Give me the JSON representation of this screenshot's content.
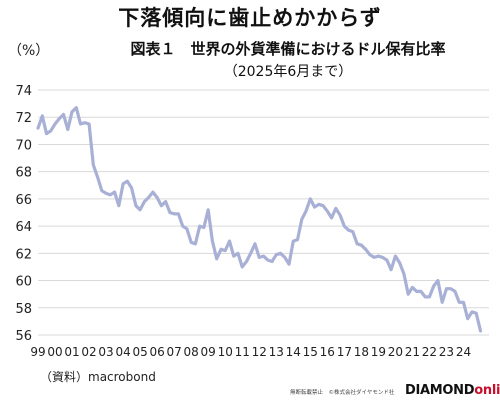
{
  "headline": "下落傾向に歯止めかからず",
  "chart_data": {
    "type": "line",
    "title": "図表１　世界の外貨準備におけるドル保有比率",
    "subtitle": "（2025年6月まで）",
    "ylabel": "（%）",
    "xlabel": "",
    "ylim": [
      56,
      74
    ],
    "yticks": [
      56,
      58,
      60,
      62,
      64,
      66,
      68,
      70,
      72,
      74
    ],
    "xlim": [
      1999.0,
      2025.5
    ],
    "xtick_values": [
      1999,
      2000,
      2001,
      2002,
      2003,
      2004,
      2005,
      2006,
      2007,
      2008,
      2009,
      2010,
      2011,
      2012,
      2013,
      2014,
      2015,
      2016,
      2017,
      2018,
      2019,
      2020,
      2021,
      2022,
      2023,
      2024
    ],
    "xtick_labels": [
      "99",
      "00",
      "01",
      "02",
      "03",
      "04",
      "05",
      "06",
      "07",
      "08",
      "09",
      "10",
      "11",
      "12",
      "13",
      "14",
      "15",
      "16",
      "17",
      "18",
      "19",
      "20",
      "21",
      "22",
      "23",
      "24"
    ],
    "grid": "horizontal",
    "line_color": "#a9b0d6",
    "series": [
      {
        "name": "",
        "points": [
          [
            1999.0,
            71.2
          ],
          [
            1999.25,
            72.1
          ],
          [
            1999.5,
            70.8
          ],
          [
            1999.75,
            71.0
          ],
          [
            2000.0,
            71.5
          ],
          [
            2000.25,
            71.9
          ],
          [
            2000.5,
            72.2
          ],
          [
            2000.75,
            71.1
          ],
          [
            2001.0,
            72.4
          ],
          [
            2001.25,
            72.7
          ],
          [
            2001.5,
            71.5
          ],
          [
            2001.75,
            71.6
          ],
          [
            2002.0,
            71.5
          ],
          [
            2002.25,
            68.5
          ],
          [
            2002.5,
            67.6
          ],
          [
            2002.75,
            66.6
          ],
          [
            2003.0,
            66.4
          ],
          [
            2003.25,
            66.3
          ],
          [
            2003.5,
            66.5
          ],
          [
            2003.75,
            65.5
          ],
          [
            2004.0,
            67.1
          ],
          [
            2004.25,
            67.3
          ],
          [
            2004.5,
            66.8
          ],
          [
            2004.75,
            65.5
          ],
          [
            2005.0,
            65.2
          ],
          [
            2005.25,
            65.8
          ],
          [
            2005.5,
            66.1
          ],
          [
            2005.75,
            66.5
          ],
          [
            2006.0,
            66.1
          ],
          [
            2006.25,
            65.5
          ],
          [
            2006.5,
            65.8
          ],
          [
            2006.75,
            65.0
          ],
          [
            2007.0,
            64.9
          ],
          [
            2007.25,
            64.9
          ],
          [
            2007.5,
            64.0
          ],
          [
            2007.75,
            63.8
          ],
          [
            2008.0,
            62.8
          ],
          [
            2008.25,
            62.7
          ],
          [
            2008.5,
            64.0
          ],
          [
            2008.75,
            63.9
          ],
          [
            2009.0,
            65.2
          ],
          [
            2009.25,
            62.9
          ],
          [
            2009.5,
            61.6
          ],
          [
            2009.75,
            62.3
          ],
          [
            2010.0,
            62.2
          ],
          [
            2010.25,
            62.9
          ],
          [
            2010.5,
            61.8
          ],
          [
            2010.75,
            62.0
          ],
          [
            2011.0,
            61.0
          ],
          [
            2011.25,
            61.4
          ],
          [
            2011.5,
            62.0
          ],
          [
            2011.75,
            62.7
          ],
          [
            2012.0,
            61.7
          ],
          [
            2012.25,
            61.8
          ],
          [
            2012.5,
            61.5
          ],
          [
            2012.75,
            61.4
          ],
          [
            2013.0,
            61.9
          ],
          [
            2013.25,
            62.0
          ],
          [
            2013.5,
            61.7
          ],
          [
            2013.75,
            61.2
          ],
          [
            2014.0,
            62.9
          ],
          [
            2014.25,
            63.0
          ],
          [
            2014.5,
            64.5
          ],
          [
            2014.75,
            65.1
          ],
          [
            2015.0,
            66.0
          ],
          [
            2015.25,
            65.4
          ],
          [
            2015.5,
            65.6
          ],
          [
            2015.75,
            65.5
          ],
          [
            2016.0,
            65.1
          ],
          [
            2016.25,
            64.6
          ],
          [
            2016.5,
            65.3
          ],
          [
            2016.75,
            64.8
          ],
          [
            2017.0,
            64.0
          ],
          [
            2017.25,
            63.7
          ],
          [
            2017.5,
            63.6
          ],
          [
            2017.75,
            62.7
          ],
          [
            2018.0,
            62.6
          ],
          [
            2018.25,
            62.3
          ],
          [
            2018.5,
            61.9
          ],
          [
            2018.75,
            61.7
          ],
          [
            2019.0,
            61.8
          ],
          [
            2019.25,
            61.7
          ],
          [
            2019.5,
            61.5
          ],
          [
            2019.75,
            60.8
          ],
          [
            2020.0,
            61.8
          ],
          [
            2020.25,
            61.3
          ],
          [
            2020.5,
            60.5
          ],
          [
            2020.75,
            59.0
          ],
          [
            2021.0,
            59.5
          ],
          [
            2021.25,
            59.2
          ],
          [
            2021.5,
            59.2
          ],
          [
            2021.75,
            58.8
          ],
          [
            2022.0,
            58.8
          ],
          [
            2022.25,
            59.6
          ],
          [
            2022.5,
            60.0
          ],
          [
            2022.75,
            58.4
          ],
          [
            2023.0,
            59.4
          ],
          [
            2023.25,
            59.4
          ],
          [
            2023.5,
            59.2
          ],
          [
            2023.75,
            58.4
          ],
          [
            2024.0,
            58.4
          ],
          [
            2024.25,
            57.2
          ],
          [
            2024.5,
            57.7
          ],
          [
            2024.75,
            57.6
          ],
          [
            2025.0,
            56.3
          ]
        ]
      }
    ]
  },
  "footer": {
    "source": "（資料）macrobond",
    "copyright": "無断転載禁止　©株式会社ダイヤモンド社",
    "brand_part1": "DIAMOND",
    "brand_part2": "online"
  }
}
